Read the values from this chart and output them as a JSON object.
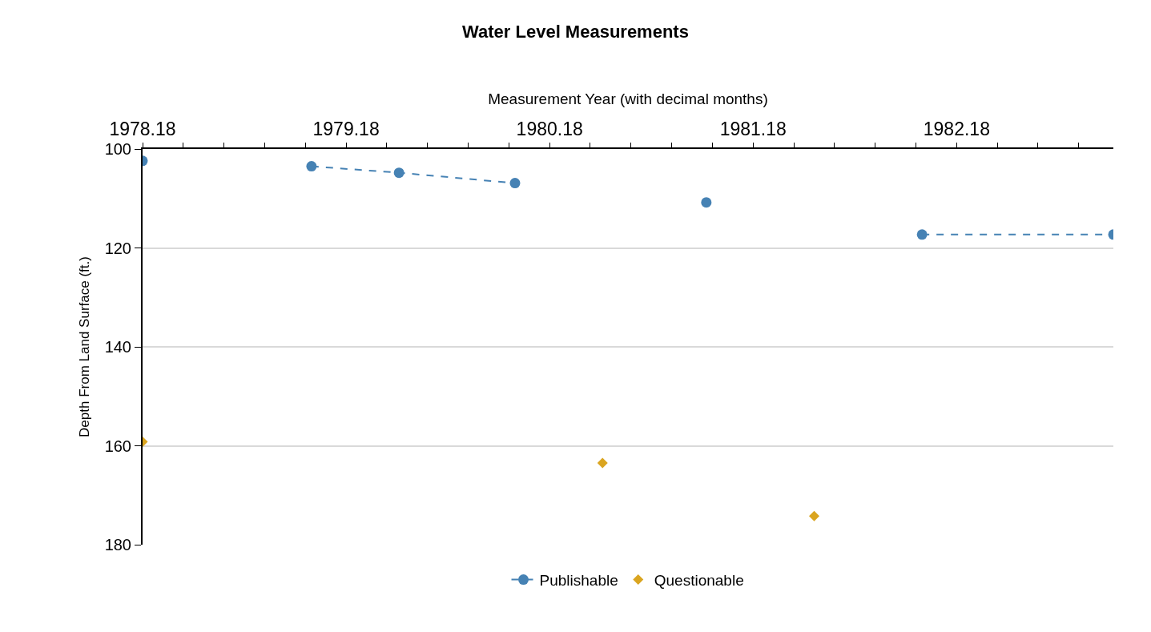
{
  "chart_data": {
    "type": "line",
    "title": "Water Level Measurements",
    "xlabel": "Measurement Year (with decimal months)",
    "ylabel": "Depth From Land Surface (ft.)",
    "xlim": [
      1978.18,
      1982.95
    ],
    "xticks": [
      {
        "value": 1978.18,
        "label": "1978.18"
      },
      {
        "value": 1978.38,
        "label": null
      },
      {
        "value": 1978.58,
        "label": null
      },
      {
        "value": 1978.78,
        "label": null
      },
      {
        "value": 1978.98,
        "label": null
      },
      {
        "value": 1979.18,
        "label": "1979.18"
      },
      {
        "value": 1979.38,
        "label": null
      },
      {
        "value": 1979.58,
        "label": null
      },
      {
        "value": 1979.78,
        "label": null
      },
      {
        "value": 1979.98,
        "label": null
      },
      {
        "value": 1980.18,
        "label": "1980.18"
      },
      {
        "value": 1980.38,
        "label": null
      },
      {
        "value": 1980.58,
        "label": null
      },
      {
        "value": 1980.78,
        "label": null
      },
      {
        "value": 1980.98,
        "label": null
      },
      {
        "value": 1981.18,
        "label": "1981.18"
      },
      {
        "value": 1981.38,
        "label": null
      },
      {
        "value": 1981.58,
        "label": null
      },
      {
        "value": 1981.78,
        "label": null
      },
      {
        "value": 1981.98,
        "label": null
      },
      {
        "value": 1982.18,
        "label": "1982.18"
      },
      {
        "value": 1982.38,
        "label": null
      },
      {
        "value": 1982.58,
        "label": null
      },
      {
        "value": 1982.78,
        "label": null
      }
    ],
    "ylim": [
      180,
      100
    ],
    "yticks": [
      100,
      120,
      140,
      160,
      180
    ],
    "grid": "y",
    "legend": "bottom",
    "line_style": "dashed",
    "series": [
      {
        "name": "Publishable",
        "color": "#4682b4",
        "marker": "circle",
        "x": [
          1978.18,
          1978.6,
          1979.01,
          1979.44,
          1980.01,
          1980.5,
          1980.95,
          1981.5,
          1982.01,
          1982.95
        ],
        "values": [
          102.4,
          null,
          103.5,
          104.8,
          106.9,
          null,
          110.8,
          null,
          117.3,
          117.3
        ]
      },
      {
        "name": "Questionable",
        "type": "scatter",
        "color": "#daa520",
        "marker": "diamond",
        "x": [
          1978.18,
          1980.44,
          1981.48
        ],
        "values": [
          159.2,
          163.5,
          174.2
        ]
      }
    ]
  }
}
